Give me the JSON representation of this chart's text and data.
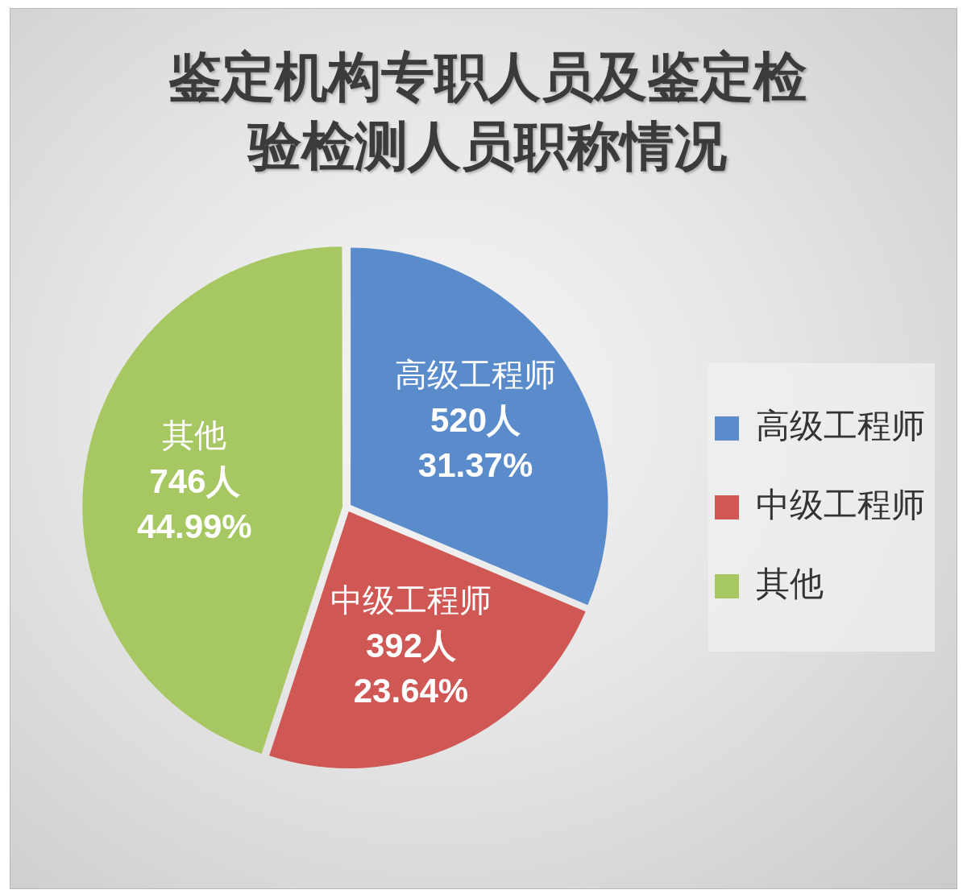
{
  "chart_data": {
    "type": "pie",
    "title": "鉴定机构专职人员及鉴定检验检测人员职称情况",
    "categories": [
      "高级工程师",
      "中级工程师",
      "其他"
    ],
    "values": [
      520,
      392,
      746
    ],
    "colors": [
      "#5a8ccb",
      "#cf5855",
      "#a7c763"
    ],
    "value_labels": [
      "520人\n31.37%",
      "392人\n23.64%",
      "746人\n44.99%"
    ],
    "legend": "right"
  }
}
